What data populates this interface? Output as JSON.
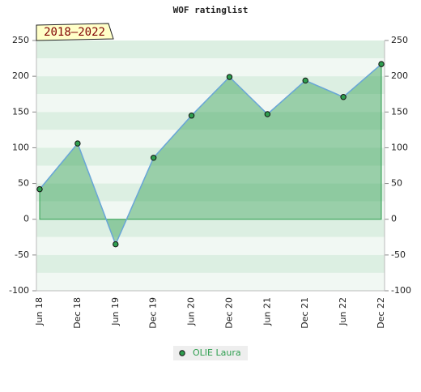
{
  "chart_data": {
    "type": "area",
    "title": "WOF ratinglist",
    "annotation": "2018–2022",
    "categories": [
      "Jun 18",
      "Dec 18",
      "Jun 19",
      "Dec 19",
      "Jun 20",
      "Dec 20",
      "Jun 21",
      "Dec 21",
      "Jun 22",
      "Dec 22"
    ],
    "series": [
      {
        "name": "OLIE Laura",
        "color": "#2e9e4f",
        "values": [
          42,
          106,
          -35,
          86,
          145,
          199,
          147,
          194,
          171,
          217
        ]
      }
    ],
    "ylim": [
      -100,
      250
    ],
    "yticks": [
      -100,
      -50,
      0,
      50,
      100,
      150,
      200,
      250
    ]
  }
}
